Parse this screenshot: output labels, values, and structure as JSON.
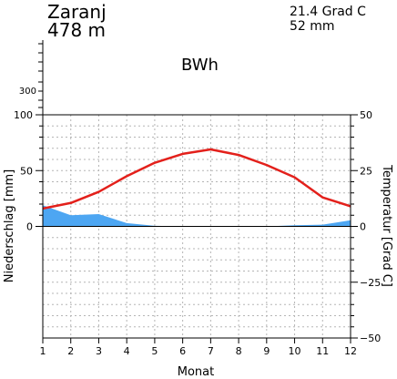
{
  "header": {
    "station": "Zaranj",
    "elevation": "478 m",
    "temperature_mean": "21.4 Grad C",
    "precipitation_sum": "52 mm",
    "climate_class": "BWh"
  },
  "chart_data": {
    "type": "line",
    "title": "",
    "xlabel": "Monat",
    "ylabel_left": "Niederschlag [mm]",
    "ylabel_right": "Temperatur [Grad C]",
    "x": [
      1,
      2,
      3,
      4,
      5,
      6,
      7,
      8,
      9,
      10,
      11,
      12
    ],
    "x_ticks": [
      "1",
      "2",
      "3",
      "4",
      "5",
      "6",
      "7",
      "8",
      "9",
      "10",
      "11",
      "12"
    ],
    "y_left_ticks": [
      "0",
      "50",
      "100",
      "300"
    ],
    "y_right_ticks": [
      "50",
      "25",
      "0",
      "−25",
      "−50"
    ],
    "precip_ylim": [
      -100,
      100
    ],
    "temp_ylim": [
      -50,
      50
    ],
    "grid": true,
    "series": [
      {
        "key": "temperature",
        "color": "#e3201b",
        "axis": "right",
        "values": [
          8.0,
          10.5,
          15.5,
          22.5,
          28.5,
          32.5,
          34.5,
          32.0,
          27.5,
          22.0,
          13.0,
          9.0
        ]
      },
      {
        "key": "precipitation",
        "color": "#4da6f2",
        "axis": "left",
        "values": [
          19.0,
          10.0,
          11.0,
          3.0,
          0.5,
          0.1,
          0.0,
          0.0,
          0.0,
          1.0,
          1.5,
          5.5
        ]
      }
    ]
  }
}
